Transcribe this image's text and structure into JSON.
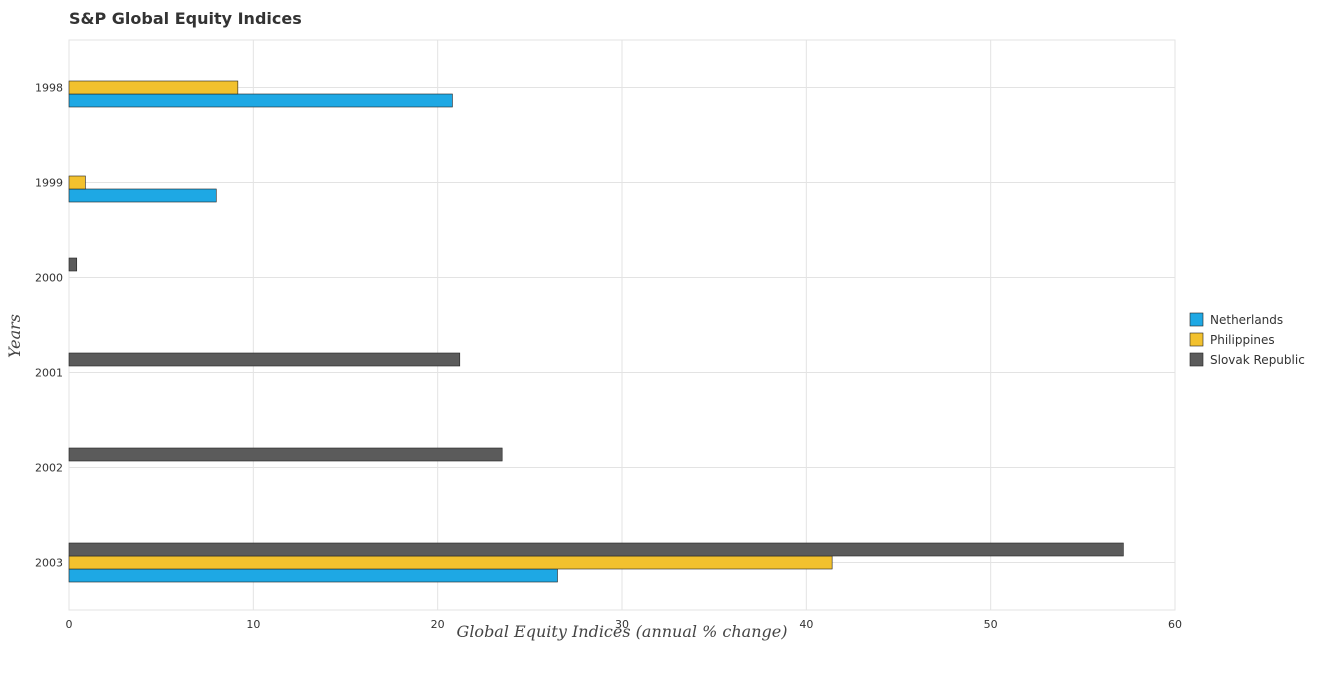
{
  "chart_data": {
    "type": "bar",
    "orientation": "horizontal",
    "title": "S&P Global Equity Indices",
    "xlabel": "Global Equity Indices (annual % change)",
    "ylabel": "Years",
    "categories": [
      "1998",
      "1999",
      "2000",
      "2001",
      "2002",
      "2003"
    ],
    "series": [
      {
        "name": "Netherlands",
        "color": "#1ea8e4",
        "values": [
          20.8,
          7.99,
          0,
          0,
          0,
          26.5
        ]
      },
      {
        "name": "Philippines",
        "color": "#f2c12e",
        "values": [
          9.16,
          0.89,
          0,
          0,
          0,
          41.4
        ]
      },
      {
        "name": "Slovak Republic",
        "color": "#5b5b5b",
        "values": [
          0,
          0,
          0.42,
          21.2,
          23.5,
          57.2
        ]
      }
    ],
    "xlim": [
      0,
      60
    ],
    "xticks": [
      0,
      10,
      20,
      30,
      40,
      50,
      60
    ],
    "grid": true,
    "legend": "right"
  }
}
